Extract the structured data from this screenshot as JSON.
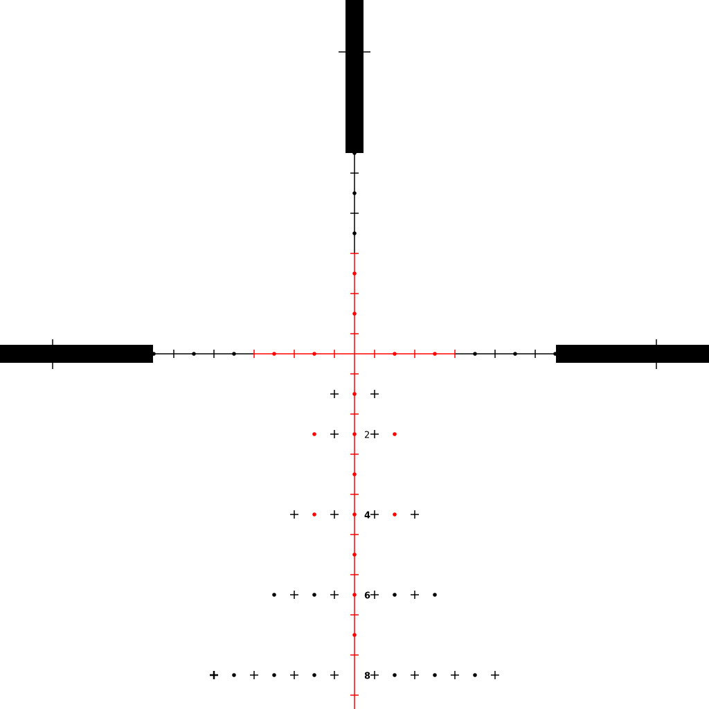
{
  "reticle": {
    "colors": {
      "background": "#ffffff",
      "primary": "#000000",
      "illuminated": "#ff0000"
    },
    "holdover_labels": [
      "2",
      "4",
      "6",
      "8"
    ]
  }
}
